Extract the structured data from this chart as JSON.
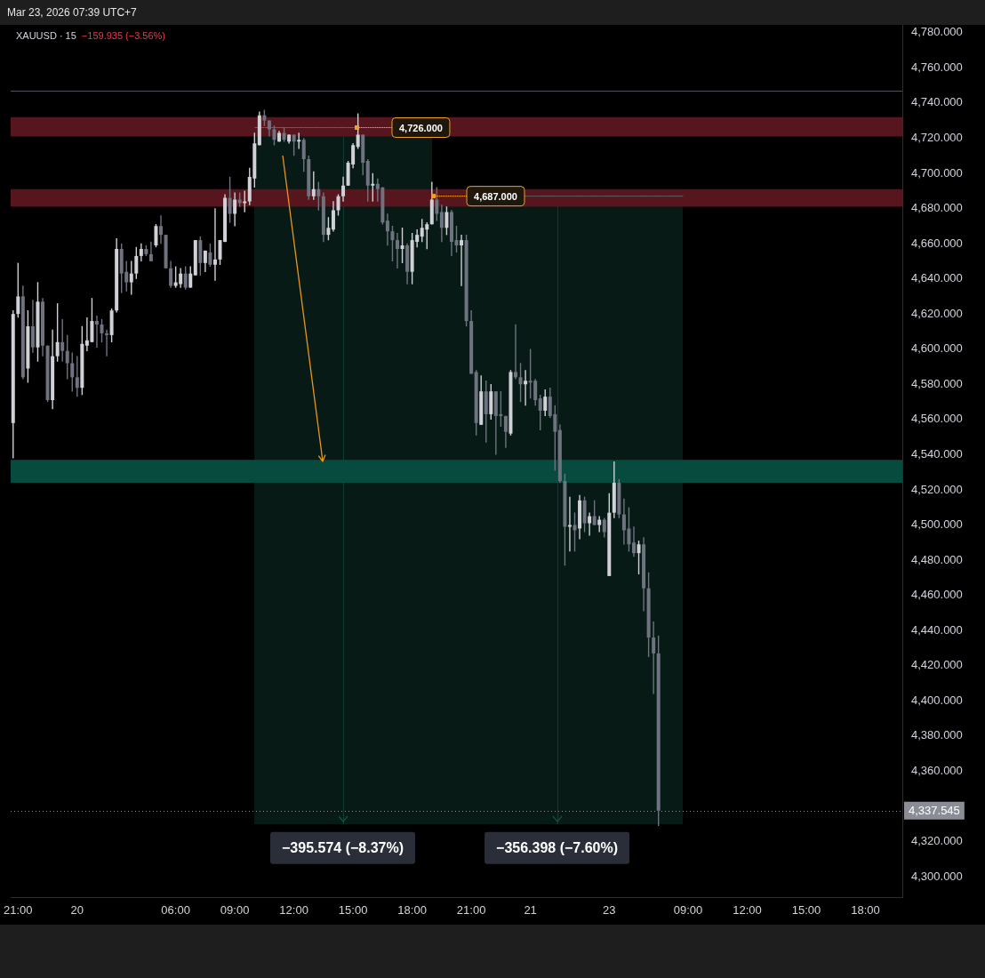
{
  "chart_data": {
    "type": "candlestick",
    "title": "XAUUSD · 15",
    "subtitle": "−159.935 (−3.56%)",
    "categories": [
      null,
      "21:00",
      null,
      null,
      null,
      null,
      null,
      null,
      null,
      null,
      null,
      null,
      null,
      "20",
      null,
      null,
      null,
      null,
      null,
      null,
      null,
      null,
      null,
      null,
      null,
      null,
      null,
      null,
      null,
      null,
      null,
      null,
      null,
      "06:00",
      null,
      null,
      null,
      null,
      null,
      null,
      null,
      null,
      null,
      null,
      null,
      "09:00",
      null,
      null,
      null,
      null,
      null,
      null,
      null,
      null,
      null,
      null,
      null,
      "12:00",
      null,
      null,
      null,
      null,
      null,
      null,
      null,
      null,
      null,
      null,
      null,
      "15:00",
      null,
      null,
      null,
      null,
      null,
      null,
      null,
      null,
      null,
      null,
      null,
      "18:00",
      null,
      null,
      null,
      null,
      null,
      null,
      null,
      null,
      null,
      null,
      null,
      "21:00",
      null,
      null,
      null,
      null,
      null,
      null,
      null,
      null,
      null,
      null,
      null,
      "21",
      null,
      null,
      null,
      null,
      null,
      null,
      null,
      null,
      null,
      null,
      null,
      null,
      null,
      null,
      null,
      "23",
      null,
      null,
      null,
      null,
      null,
      null,
      null,
      null,
      null,
      null,
      null,
      null,
      null,
      null,
      null,
      "09:00",
      null,
      null,
      null,
      null,
      null,
      null,
      null,
      null,
      null,
      null,
      null,
      "12:00",
      null,
      null,
      null,
      null,
      null,
      null,
      null,
      null,
      null,
      null,
      null,
      "15:00",
      null,
      null,
      null,
      null,
      null,
      null,
      null,
      null,
      null,
      null,
      null,
      "18:00",
      null,
      null,
      null,
      null,
      null,
      null,
      null
    ],
    "ohlc": [
      [
        4558,
        4622,
        4538,
        4620
      ],
      [
        4620,
        4649,
        4618,
        4630
      ],
      [
        4630,
        4636,
        4583,
        4584
      ],
      [
        4589,
        4622,
        4581,
        4613
      ],
      [
        4613,
        4628,
        4598,
        4601
      ],
      [
        4601,
        4638,
        4593,
        4627
      ],
      [
        4627,
        4629,
        4596,
        4602
      ],
      [
        4602,
        4602,
        4570,
        4571
      ],
      [
        4571,
        4611,
        4566,
        4596
      ],
      [
        4596,
        4626,
        4593,
        4604
      ],
      [
        4604,
        4617,
        4593,
        4599
      ],
      [
        4599,
        4608,
        4583,
        4592
      ],
      [
        4592,
        4598,
        4576,
        4584
      ],
      [
        4584,
        4596,
        4573,
        4578
      ],
      [
        4578,
        4613,
        4574,
        4603
      ],
      [
        4602,
        4618,
        4599,
        4605
      ],
      [
        4604,
        4629,
        4604,
        4616
      ],
      [
        4616,
        4619,
        4601,
        4614
      ],
      [
        4614,
        4617,
        4604,
        4609
      ],
      [
        4609,
        4611,
        4596,
        4608
      ],
      [
        4608,
        4623,
        4604,
        4622
      ],
      [
        4622,
        4663,
        4621,
        4657
      ],
      [
        4657,
        4660,
        4632,
        4643
      ],
      [
        4644,
        4650,
        4633,
        4638
      ],
      [
        4638,
        4650,
        4631,
        4643
      ],
      [
        4643,
        4658,
        4640,
        4653
      ],
      [
        4653,
        4660,
        4650,
        4657
      ],
      [
        4657,
        4659,
        4653,
        4654
      ],
      [
        4654,
        4661,
        4650,
        4650
      ],
      [
        4659,
        4671,
        4658,
        4670
      ],
      [
        4670,
        4676,
        4660,
        4665
      ],
      [
        4665,
        4665,
        4646,
        4646
      ],
      [
        4646,
        4650,
        4635,
        4636
      ],
      [
        4636,
        4647,
        4635,
        4638
      ],
      [
        4637,
        4646,
        4635,
        4643
      ],
      [
        4643,
        4647,
        4634,
        4635
      ],
      [
        4635,
        4647,
        4635,
        4643
      ],
      [
        4642,
        4662,
        4642,
        4662
      ],
      [
        4662,
        4664,
        4642,
        4649
      ],
      [
        4649,
        4656,
        4644,
        4656
      ],
      [
        4655,
        4660,
        4647,
        4648
      ],
      [
        4648,
        4680,
        4639,
        4651
      ],
      [
        4651,
        4662,
        4648,
        4662
      ],
      [
        4661,
        4688,
        4661,
        4686
      ],
      [
        4686,
        4698,
        4672,
        4677
      ],
      [
        4677,
        4689,
        4670,
        4685
      ],
      [
        4685,
        4689,
        4681,
        4683
      ],
      [
        4683,
        4690,
        4678,
        4684
      ],
      [
        4684,
        4703,
        4682,
        4698
      ],
      [
        4697,
        4723,
        4692,
        4717
      ],
      [
        4716,
        4735,
        4716,
        4733
      ],
      [
        4733,
        4736,
        4727,
        4730
      ],
      [
        4730,
        4730,
        4721,
        4725
      ],
      [
        4725,
        4727,
        4716,
        4719
      ],
      [
        4718,
        4724,
        4718,
        4723
      ],
      [
        4723,
        4726,
        4718,
        4719
      ],
      [
        4718,
        4722,
        4717,
        4722
      ],
      [
        4722,
        4722,
        4710,
        4718
      ],
      [
        4718,
        4723,
        4714,
        4719
      ],
      [
        4719,
        4720,
        4701,
        4708
      ],
      [
        4708,
        4710,
        4685,
        4687
      ],
      [
        4687,
        4701,
        4685,
        4691
      ],
      [
        4691,
        4695,
        4679,
        4687
      ],
      [
        4687,
        4689,
        4661,
        4665
      ],
      [
        4665,
        4675,
        4662,
        4669
      ],
      [
        4668,
        4684,
        4667,
        4679
      ],
      [
        4679,
        4688,
        4676,
        4687
      ],
      [
        4687,
        4698,
        4684,
        4693
      ],
      [
        4693,
        4707,
        4693,
        4706
      ],
      [
        4705,
        4717,
        4703,
        4716
      ],
      [
        4715,
        4734,
        4714,
        4722
      ],
      [
        4722,
        4722,
        4699,
        4706
      ],
      [
        4707,
        4708,
        4684,
        4693
      ],
      [
        4693,
        4700,
        4684,
        4694
      ],
      [
        4694,
        4697,
        4684,
        4691
      ],
      [
        4692,
        4692,
        4671,
        4672
      ],
      [
        4673,
        4677,
        4659,
        4667
      ],
      [
        4667,
        4670,
        4650,
        4662
      ],
      [
        4662,
        4666,
        4646,
        4657
      ],
      [
        4657,
        4669,
        4649,
        4659
      ],
      [
        4659,
        4660,
        4637,
        4644
      ],
      [
        4644,
        4666,
        4637,
        4662
      ],
      [
        4661,
        4668,
        4658,
        4665
      ],
      [
        4664,
        4674,
        4661,
        4669
      ],
      [
        4668,
        4672,
        4657,
        4671
      ],
      [
        4671,
        4695,
        4671,
        4685
      ],
      [
        4685,
        4692,
        4673,
        4677
      ],
      [
        4678,
        4682,
        4661,
        4669
      ],
      [
        4669,
        4681,
        4665,
        4678
      ],
      [
        4678,
        4679,
        4653,
        4661
      ],
      [
        4662,
        4670,
        4655,
        4659
      ],
      [
        4659,
        4665,
        4636,
        4662
      ],
      [
        4662,
        4665,
        4613,
        4616
      ],
      [
        4616,
        4622,
        4586,
        4586
      ],
      [
        4587,
        4588,
        4551,
        4558
      ],
      [
        4557,
        4585,
        4557,
        4576
      ],
      [
        4576,
        4582,
        4547,
        4563
      ],
      [
        4563,
        4580,
        4560,
        4576
      ],
      [
        4576,
        4576,
        4540,
        4562
      ],
      [
        4563,
        4576,
        4556,
        4562
      ],
      [
        4562,
        4562,
        4544,
        4553
      ],
      [
        4552,
        4588,
        4551,
        4587
      ],
      [
        4587,
        4614,
        4583,
        4584
      ],
      [
        4584,
        4592,
        4570,
        4580
      ],
      [
        4580,
        4588,
        4568,
        4582
      ],
      [
        4582,
        4600,
        4572,
        4581
      ],
      [
        4582,
        4583,
        4568,
        4571
      ],
      [
        4572,
        4574,
        4554,
        4565
      ],
      [
        4565,
        4577,
        4562,
        4573
      ],
      [
        4573,
        4578,
        4561,
        4562
      ],
      [
        4563,
        4568,
        4531,
        4553
      ],
      [
        4554,
        4557,
        4524,
        4525
      ],
      [
        4525,
        4529,
        4477,
        4499
      ],
      [
        4499,
        4516,
        4485,
        4500
      ],
      [
        4500,
        4507,
        4485,
        4497
      ],
      [
        4498,
        4517,
        4492,
        4514
      ],
      [
        4514,
        4516,
        4496,
        4501
      ],
      [
        4501,
        4507,
        4494,
        4505
      ],
      [
        4505,
        4514,
        4500,
        4500
      ],
      [
        4500,
        4505,
        4496,
        4503
      ],
      [
        4503,
        4504,
        4493,
        4496
      ],
      [
        4471,
        4518,
        4471,
        4507
      ],
      [
        4507,
        4536,
        4504,
        4524
      ],
      [
        4524,
        4526,
        4504,
        4506
      ],
      [
        4506,
        4515,
        4489,
        4497
      ],
      [
        4498,
        4510,
        4485,
        4489
      ],
      [
        4490,
        4499,
        4482,
        4484
      ],
      [
        4484,
        4491,
        4472,
        4489
      ],
      [
        4489,
        4493,
        4451,
        4464
      ],
      [
        4464,
        4473,
        4425,
        4436
      ],
      [
        4436,
        4445,
        4404,
        4427
      ],
      [
        4427,
        4437,
        4329,
        4337.545
      ],
      null,
      null,
      null,
      null,
      null,
      null,
      null,
      null,
      null,
      null,
      null,
      null,
      null,
      null,
      null,
      null,
      null,
      null,
      null,
      null,
      null,
      null,
      null,
      null,
      null,
      null,
      null,
      null,
      null,
      null,
      null,
      null,
      null,
      null,
      null,
      null,
      null,
      null,
      null,
      null,
      null,
      null,
      null,
      null,
      null,
      null,
      null,
      null,
      null
    ],
    "colors": [
      "#cfd1d6",
      "#cfd1d6",
      "#6f7380",
      "#cfd1d6",
      "#6f7380",
      "#cfd1d6",
      "#6f7380",
      "#6f7380",
      "#cfd1d6",
      "#cfd1d6",
      "#6f7380",
      "#6f7380",
      "#6f7380",
      "#6f7380",
      "#cfd1d6",
      "#cfd1d6",
      "#cfd1d6",
      "#6f7380",
      "#6f7380",
      "#6f7380",
      "#cfd1d6",
      "#cfd1d6",
      "#6f7380",
      "#6f7380",
      "#cfd1d6",
      "#cfd1d6",
      "#cfd1d6",
      "#6f7380",
      "#6f7380",
      "#cfd1d6",
      "#6f7380",
      "#6f7380",
      "#6f7380",
      "#cfd1d6",
      "#cfd1d6",
      "#6f7380",
      "#cfd1d6",
      "#cfd1d6",
      "#6f7380",
      "#cfd1d6",
      "#6f7380",
      "#cfd1d6",
      "#cfd1d6",
      "#cfd1d6",
      "#6f7380",
      "#cfd1d6",
      "#6f7380",
      "#cfd1d6",
      "#cfd1d6",
      "#cfd1d6",
      "#cfd1d6",
      "#6f7380",
      "#6f7380",
      "#6f7380",
      "#cfd1d6",
      "#6f7380",
      "#cfd1d6",
      "#6f7380",
      "#cfd1d6",
      "#6f7380",
      "#6f7380",
      "#cfd1d6",
      "#6f7380",
      "#6f7380",
      "#cfd1d6",
      "#cfd1d6",
      "#cfd1d6",
      "#cfd1d6",
      "#cfd1d6",
      "#cfd1d6",
      "#cfd1d6",
      "#6f7380",
      "#6f7380",
      "#cfd1d6",
      "#6f7380",
      "#6f7380",
      "#6f7380",
      "#6f7380",
      "#6f7380",
      "#cfd1d6",
      "#6f7380",
      "#cfd1d6",
      "#cfd1d6",
      "#cfd1d6",
      "#cfd1d6",
      "#cfd1d6",
      "#6f7380",
      "#6f7380",
      "#cfd1d6",
      "#6f7380",
      "#6f7380",
      "#cfd1d6",
      "#6f7380",
      "#6f7380",
      "#6f7380",
      "#cfd1d6",
      "#6f7380",
      "#cfd1d6",
      "#6f7380",
      "#6f7380",
      "#6f7380",
      "#cfd1d6",
      "#6f7380",
      "#6f7380",
      "#cfd1d6",
      "#6f7380",
      "#6f7380",
      "#6f7380",
      "#cfd1d6",
      "#6f7380",
      "#6f7380",
      "#6f7380",
      "#6f7380",
      "#cfd1d6",
      "#6f7380",
      "#cfd1d6",
      "#6f7380",
      "#cfd1d6",
      "#6f7380",
      "#cfd1d6",
      "#6f7380",
      "#cfd1d6",
      "#cfd1d6",
      "#6f7380",
      "#6f7380",
      "#6f7380",
      "#6f7380",
      "#cfd1d6",
      "#6f7380",
      "#6f7380",
      "#6f7380",
      "#6f7380",
      null,
      null,
      null,
      null,
      null,
      null,
      null,
      null,
      null,
      null,
      null,
      null,
      null,
      null,
      null,
      null,
      null,
      null,
      null,
      null,
      null,
      null,
      null,
      null,
      null,
      null,
      null,
      null,
      null,
      null,
      null,
      null,
      null,
      null,
      null,
      null,
      null,
      null,
      null,
      null,
      null,
      null,
      null,
      null,
      null,
      null,
      null,
      null,
      null
    ],
    "series": [
      {
        "type": "line",
        "color": "#5d606b",
        "values": [
          null,
          null,
          null,
          null,
          null,
          null,
          null,
          null,
          null,
          null,
          null,
          null,
          null,
          null,
          null,
          null,
          null,
          null,
          null,
          null,
          null,
          null,
          null,
          null,
          null,
          null,
          null,
          null,
          null,
          null,
          null,
          null,
          null,
          null,
          null,
          null,
          null,
          null,
          null,
          null,
          null,
          null,
          null,
          null,
          null,
          null,
          null,
          null,
          null,
          4726,
          4726,
          4726,
          4726,
          4726,
          4726,
          4726,
          4726,
          4726,
          4726,
          4726,
          4726,
          4726,
          4726,
          4726,
          4726,
          4726,
          4726,
          4726,
          4726,
          4726,
          4726,
          4726,
          4726,
          4726,
          4726,
          4726,
          4726,
          4726,
          4726,
          4726,
          4726,
          4726,
          4726,
          4726,
          4726,
          4726,
          null,
          null,
          null,
          null,
          null,
          null,
          null,
          null,
          null,
          null,
          null,
          null,
          null,
          null,
          null,
          null,
          null,
          null,
          null,
          null,
          null,
          null,
          null,
          null,
          null,
          null,
          null,
          null,
          null,
          null,
          null,
          null,
          null,
          null,
          null,
          null,
          null,
          null,
          null,
          null,
          null,
          null,
          null,
          null,
          null,
          null,
          null,
          null,
          null,
          null,
          null,
          null,
          null,
          null,
          null,
          null,
          null,
          null,
          null,
          null,
          null,
          null,
          null,
          null,
          null,
          null,
          null,
          null,
          null,
          null,
          null,
          null,
          null,
          null,
          null,
          null,
          null,
          null,
          null,
          null,
          null,
          null,
          null,
          null,
          null,
          null,
          null,
          null,
          null,
          null,
          null,
          null,
          null,
          null,
          null
        ]
      },
      {
        "type": "line",
        "color": "#5d606b",
        "values": [
          null,
          null,
          null,
          null,
          null,
          null,
          null,
          null,
          null,
          null,
          null,
          null,
          null,
          null,
          null,
          null,
          null,
          null,
          null,
          null,
          null,
          null,
          null,
          null,
          null,
          null,
          null,
          null,
          null,
          null,
          null,
          null,
          null,
          null,
          null,
          null,
          null,
          null,
          null,
          null,
          null,
          null,
          null,
          null,
          null,
          null,
          null,
          null,
          null,
          null,
          null,
          null,
          null,
          null,
          null,
          null,
          null,
          null,
          null,
          null,
          null,
          null,
          null,
          null,
          null,
          null,
          null,
          null,
          null,
          null,
          null,
          null,
          null,
          null,
          null,
          null,
          null,
          null,
          null,
          null,
          null,
          null,
          null,
          null,
          null,
          4687,
          4687,
          4687,
          4687,
          4687,
          4687,
          4687,
          4687,
          4687,
          4687,
          4687,
          4687,
          4687,
          4687,
          4687,
          4687,
          4687,
          4687,
          4687,
          4687,
          4687,
          4687,
          4687,
          4687,
          4687,
          4687,
          4687,
          4687,
          4687,
          4687,
          4687,
          4687,
          4687,
          4687,
          4687,
          4687,
          4687,
          4687,
          4687,
          4687,
          4687,
          4687,
          4687,
          4687,
          4687,
          4687,
          4687,
          4687,
          4687,
          4687,
          4687,
          4687,
          null,
          null,
          null,
          null,
          null,
          null,
          null,
          null,
          null,
          null,
          null,
          null,
          null,
          null,
          null,
          null,
          null,
          null,
          null,
          null,
          null,
          null,
          null,
          null,
          null,
          null,
          null,
          null,
          null,
          null,
          null,
          null,
          null,
          null,
          null,
          null,
          null,
          null,
          null,
          null,
          null,
          null,
          null,
          null
        ]
      }
    ],
    "ylim": [
      4288,
      4784.5
    ],
    "yticks": [
      {
        "value": 4300,
        "label": "4,300.000"
      },
      {
        "value": 4320,
        "label": "4,320.000"
      },
      {
        "value": 4360,
        "label": "4,360.000"
      },
      {
        "value": 4380,
        "label": "4,380.000"
      },
      {
        "value": 4400,
        "label": "4,400.000"
      },
      {
        "value": 4420,
        "label": "4,420.000"
      },
      {
        "value": 4440,
        "label": "4,440.000"
      },
      {
        "value": 4460,
        "label": "4,460.000"
      },
      {
        "value": 4480,
        "label": "4,480.000"
      },
      {
        "value": 4500,
        "label": "4,500.000"
      },
      {
        "value": 4520,
        "label": "4,520.000"
      },
      {
        "value": 4540,
        "label": "4,540.000"
      },
      {
        "value": 4560,
        "label": "4,560.000"
      },
      {
        "value": 4580,
        "label": "4,580.000"
      },
      {
        "value": 4600,
        "label": "4,600.000"
      },
      {
        "value": 4620,
        "label": "4,620.000"
      },
      {
        "value": 4640,
        "label": "4,640.000"
      },
      {
        "value": 4660,
        "label": "4,660.000"
      },
      {
        "value": 4680,
        "label": "4,680.000"
      },
      {
        "value": 4700,
        "label": "4,700.000"
      },
      {
        "value": 4720,
        "label": "4,720.000"
      },
      {
        "value": 4740,
        "label": "4,740.000"
      },
      {
        "value": 4760,
        "label": "4,760.000"
      },
      {
        "value": 4780,
        "label": "4,780.000"
      }
    ],
    "bands": [
      {
        "axis": "y",
        "from": 4721,
        "to": 4732,
        "color": "#57151d"
      },
      {
        "axis": "y",
        "from": 4681,
        "to": 4691,
        "color": "#57151d"
      },
      {
        "axis": "y",
        "from": 4524,
        "to": 4537,
        "color": "#074b3e"
      }
    ],
    "ref_lines": [
      {
        "axis": "y",
        "value": 4747,
        "color": "#50535e"
      },
      {
        "axis": "y",
        "value": 4337.545,
        "label": "4,337.545",
        "line_style": "dotted",
        "color": "#8a8d96"
      }
    ],
    "annotations": [
      "Mar 23, 2026 07:39 UTC+7",
      {
        "text": "4,726.000",
        "y": 4726
      },
      {
        "text": "4,687.000",
        "y": 4687
      },
      "−395.574 (−8.37%)",
      "−356.398 (−7.60%)"
    ]
  }
}
